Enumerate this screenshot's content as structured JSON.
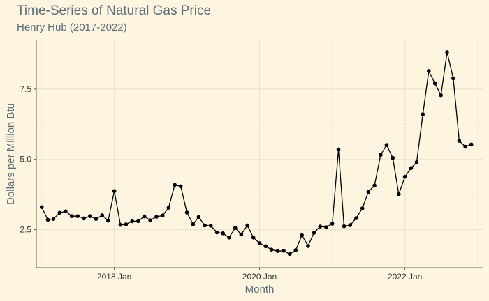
{
  "chart_data": {
    "type": "line",
    "title": "Time-Series of Natural Gas Price",
    "subtitle": "Henry Hub (2017-2022)",
    "xlabel": "Month",
    "ylabel": "Dollars per Million Btu",
    "xlim": [
      "2016-12-05",
      "2023-01-27"
    ],
    "ylim": [
      1.15,
      9.23
    ],
    "x_ticks": [
      {
        "value": "2018-01-01",
        "label": "2018 Jan"
      },
      {
        "value": "2020-01-01",
        "label": "2020 Jan"
      },
      {
        "value": "2022-01-01",
        "label": "2022 Jan"
      }
    ],
    "y_ticks": [
      {
        "value": 2.5,
        "label": "2.5"
      },
      {
        "value": 5.0,
        "label": "5.0"
      },
      {
        "value": 7.5,
        "label": "7.5"
      }
    ],
    "grid": true,
    "legend": "none",
    "colors": {
      "line": "#000000",
      "points": "#000000",
      "grid": "#ece3c8",
      "axis": "#333333"
    },
    "x": [
      "2017-01",
      "2017-02",
      "2017-03",
      "2017-04",
      "2017-05",
      "2017-06",
      "2017-07",
      "2017-08",
      "2017-09",
      "2017-10",
      "2017-11",
      "2017-12",
      "2018-01",
      "2018-02",
      "2018-03",
      "2018-04",
      "2018-05",
      "2018-06",
      "2018-07",
      "2018-08",
      "2018-09",
      "2018-10",
      "2018-11",
      "2018-12",
      "2019-01",
      "2019-02",
      "2019-03",
      "2019-04",
      "2019-05",
      "2019-06",
      "2019-07",
      "2019-08",
      "2019-09",
      "2019-10",
      "2019-11",
      "2019-12",
      "2020-01",
      "2020-02",
      "2020-03",
      "2020-04",
      "2020-05",
      "2020-06",
      "2020-07",
      "2020-08",
      "2020-09",
      "2020-10",
      "2020-11",
      "2020-12",
      "2021-01",
      "2021-02",
      "2021-03",
      "2021-04",
      "2021-05",
      "2021-06",
      "2021-07",
      "2021-08",
      "2021-09",
      "2021-10",
      "2021-11",
      "2021-12",
      "2022-01",
      "2022-02",
      "2022-03",
      "2022-04",
      "2022-05",
      "2022-06",
      "2022-07",
      "2022-08",
      "2022-09",
      "2022-10",
      "2022-11",
      "2022-12"
    ],
    "values": [
      3.3,
      2.85,
      2.88,
      3.1,
      3.15,
      2.98,
      2.98,
      2.9,
      2.98,
      2.88,
      3.01,
      2.82,
      3.87,
      2.67,
      2.69,
      2.8,
      2.8,
      2.97,
      2.83,
      2.96,
      3.0,
      3.28,
      4.09,
      4.04,
      3.11,
      2.69,
      2.95,
      2.65,
      2.64,
      2.4,
      2.37,
      2.22,
      2.56,
      2.33,
      2.65,
      2.22,
      2.02,
      1.91,
      1.79,
      1.74,
      1.75,
      1.63,
      1.77,
      2.3,
      1.92,
      2.39,
      2.61,
      2.59,
      2.71,
      5.35,
      2.62,
      2.66,
      2.91,
      3.26,
      3.84,
      4.07,
      5.16,
      5.51,
      5.05,
      3.76,
      4.38,
      4.69,
      4.9,
      6.6,
      8.14,
      7.7,
      7.28,
      8.81,
      7.88,
      5.66,
      5.45,
      5.53
    ]
  }
}
